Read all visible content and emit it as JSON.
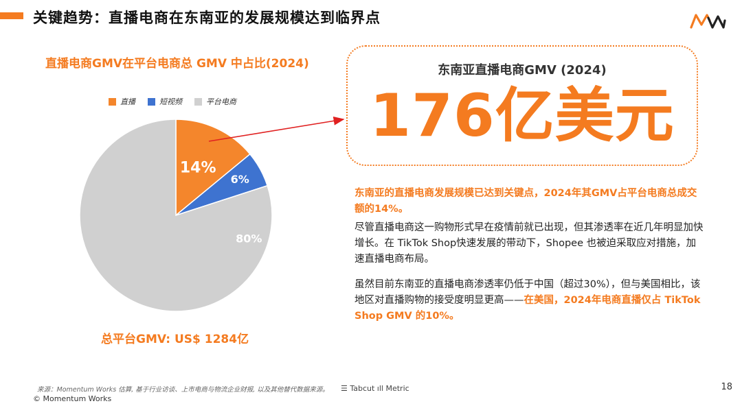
{
  "header": {
    "title": "关键趋势：直播电商在东南亚的发展规模达到临界点",
    "logo_text": "MW"
  },
  "chart_data": {
    "type": "pie",
    "title": "直播电商GMV在平台电商总 GMV 中占比(2024)",
    "legend_position": "top",
    "categories": [
      "直播",
      "短视频",
      "平台电商"
    ],
    "values": [
      14,
      6,
      80
    ],
    "labels": [
      "14%",
      "6%",
      "80%"
    ],
    "colors": [
      "#f4862c",
      "#3e73d0",
      "#d0d0d0"
    ],
    "total_label": "总平台GMV: US$ 1284亿"
  },
  "callout": {
    "subtitle": "东南亚直播电商GMV (2024)",
    "value": "176亿美元"
  },
  "text": {
    "p1": "东南亚的直播电商发展规模已达到关键点，2024年其GMV占平台电商总成交额的14%。",
    "p2": "尽管直播电商这一购物形式早在疫情前就已出现，但其渗透率在近几年明显加快增长。在 TikTok Shop快速发展的带动下，Shopee 也被迫采取应对措施，加速直播电商布局。",
    "p3_a": "虽然目前东南亚的直播电商渗透率仍低于中国（超过30%），但与美国相比，该地区对直播购物的接受度明显更高——",
    "p3_b": "在美国，2024年电商直播仅占 TikTok Shop GMV 的10%。"
  },
  "footer": {
    "source": "来源：Momentum Works 估算, 基于行业访谈、上市电商与物流企业财报, 以及其他替代数据来源。",
    "brands": "☰ Tabcut  ıll Metric",
    "copyright": "© Momentum Works",
    "page": "18"
  },
  "colors": {
    "accent": "#f47b20",
    "blue": "#3e73d0",
    "gray": "#d0d0d0"
  }
}
